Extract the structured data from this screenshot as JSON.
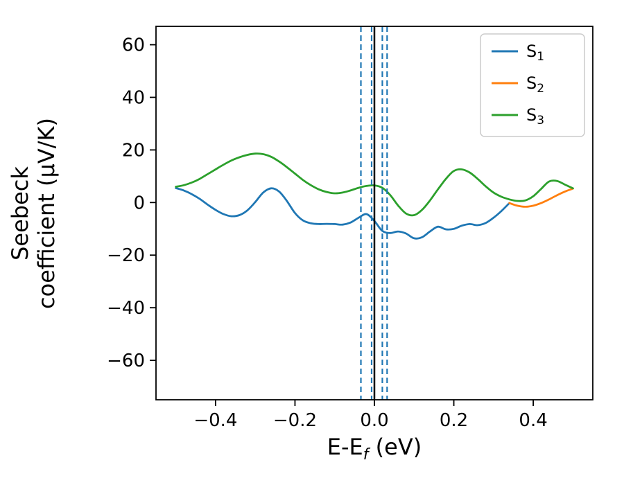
{
  "figure": {
    "background": "#ffffff",
    "plot_background": "#ffffff",
    "spine_color": "#000000"
  },
  "chart_data": {
    "type": "line",
    "title": "",
    "xlabel_parts": {
      "pre": "E-E",
      "sub": "f",
      "post": " (eV)"
    },
    "ylabel_lines": [
      "Seebeck",
      "coefficient  (μV/K)"
    ],
    "xlim": [
      -0.55,
      0.55
    ],
    "ylim": [
      -75,
      67
    ],
    "grid": false,
    "xticks": {
      "values": [
        -0.4,
        -0.2,
        0.0,
        0.2,
        0.4
      ],
      "labels": [
        "−0.4",
        "−0.2",
        "0.0",
        "0.2",
        "0.4"
      ]
    },
    "yticks": {
      "values": [
        -60,
        -40,
        -20,
        0,
        20,
        40,
        60
      ],
      "labels": [
        "−60",
        "−40",
        "−20",
        "0",
        "20",
        "40",
        "60"
      ]
    },
    "x": [
      -0.5,
      -0.48,
      -0.46,
      -0.44,
      -0.42,
      -0.4,
      -0.38,
      -0.36,
      -0.34,
      -0.32,
      -0.3,
      -0.28,
      -0.26,
      -0.24,
      -0.22,
      -0.2,
      -0.18,
      -0.16,
      -0.14,
      -0.12,
      -0.1,
      -0.08,
      -0.06,
      -0.04,
      -0.02,
      0.0,
      0.02,
      0.04,
      0.06,
      0.08,
      0.1,
      0.12,
      0.14,
      0.16,
      0.18,
      0.2,
      0.22,
      0.24,
      0.26,
      0.28,
      0.3,
      0.32,
      0.34,
      0.36,
      0.38,
      0.4,
      0.42,
      0.44,
      0.46,
      0.48,
      0.5
    ],
    "series": [
      {
        "name": "S1",
        "color": "#1f77b4",
        "values": [
          5.5,
          4.6,
          3.2,
          1.4,
          -0.8,
          -2.8,
          -4.4,
          -5.2,
          -4.8,
          -3.0,
          0.2,
          3.8,
          5.4,
          4.2,
          0.5,
          -4.0,
          -6.8,
          -7.9,
          -8.2,
          -8.1,
          -8.2,
          -8.4,
          -7.6,
          -5.8,
          -4.4,
          -7.0,
          -10.8,
          -11.6,
          -11.0,
          -11.8,
          -13.6,
          -13.2,
          -11.0,
          -9.2,
          -10.2,
          -10.0,
          -8.8,
          -8.2,
          -8.6,
          -7.8,
          -5.8,
          -3.2,
          -0.2,
          null,
          null,
          null,
          null,
          null,
          null,
          null,
          null
        ]
      },
      {
        "name": "S2",
        "color": "#ff7f0e",
        "values": [
          null,
          null,
          null,
          null,
          null,
          null,
          null,
          null,
          null,
          null,
          null,
          null,
          null,
          null,
          null,
          null,
          null,
          null,
          null,
          null,
          null,
          null,
          null,
          null,
          null,
          null,
          null,
          null,
          null,
          null,
          null,
          null,
          null,
          null,
          null,
          null,
          null,
          null,
          null,
          null,
          null,
          null,
          -0.2,
          -1.2,
          -1.6,
          -1.2,
          -0.2,
          1.2,
          2.8,
          4.2,
          5.3
        ]
      },
      {
        "name": "S3",
        "color": "#2ca02c",
        "values": [
          6.0,
          6.6,
          7.6,
          9.0,
          10.8,
          12.6,
          14.4,
          16.0,
          17.2,
          18.1,
          18.6,
          18.4,
          17.4,
          15.6,
          13.4,
          11.0,
          8.6,
          6.6,
          5.0,
          4.0,
          3.5,
          3.8,
          4.6,
          5.6,
          6.3,
          6.5,
          5.6,
          2.8,
          -1.2,
          -4.2,
          -4.8,
          -2.8,
          0.8,
          5.0,
          9.0,
          12.0,
          12.6,
          11.4,
          9.0,
          6.2,
          3.8,
          2.2,
          1.2,
          0.6,
          0.8,
          2.4,
          5.2,
          8.0,
          8.2,
          6.8,
          5.4
        ]
      }
    ],
    "vlines": [
      {
        "x": 0.0,
        "color": "#000000",
        "style": "solid"
      },
      {
        "x": -0.034,
        "color": "#1f77b4",
        "style": "dashed"
      },
      {
        "x": -0.007,
        "color": "#1f77b4",
        "style": "dashed"
      },
      {
        "x": 0.02,
        "color": "#1f77b4",
        "style": "dashed"
      },
      {
        "x": 0.032,
        "color": "#1f77b4",
        "style": "dashed"
      }
    ],
    "legend": {
      "position": "upper right",
      "entries": [
        {
          "base": "S",
          "sub": "1",
          "color": "#1f77b4"
        },
        {
          "base": "S",
          "sub": "2",
          "color": "#ff7f0e"
        },
        {
          "base": "S",
          "sub": "3",
          "color": "#2ca02c"
        }
      ]
    }
  }
}
